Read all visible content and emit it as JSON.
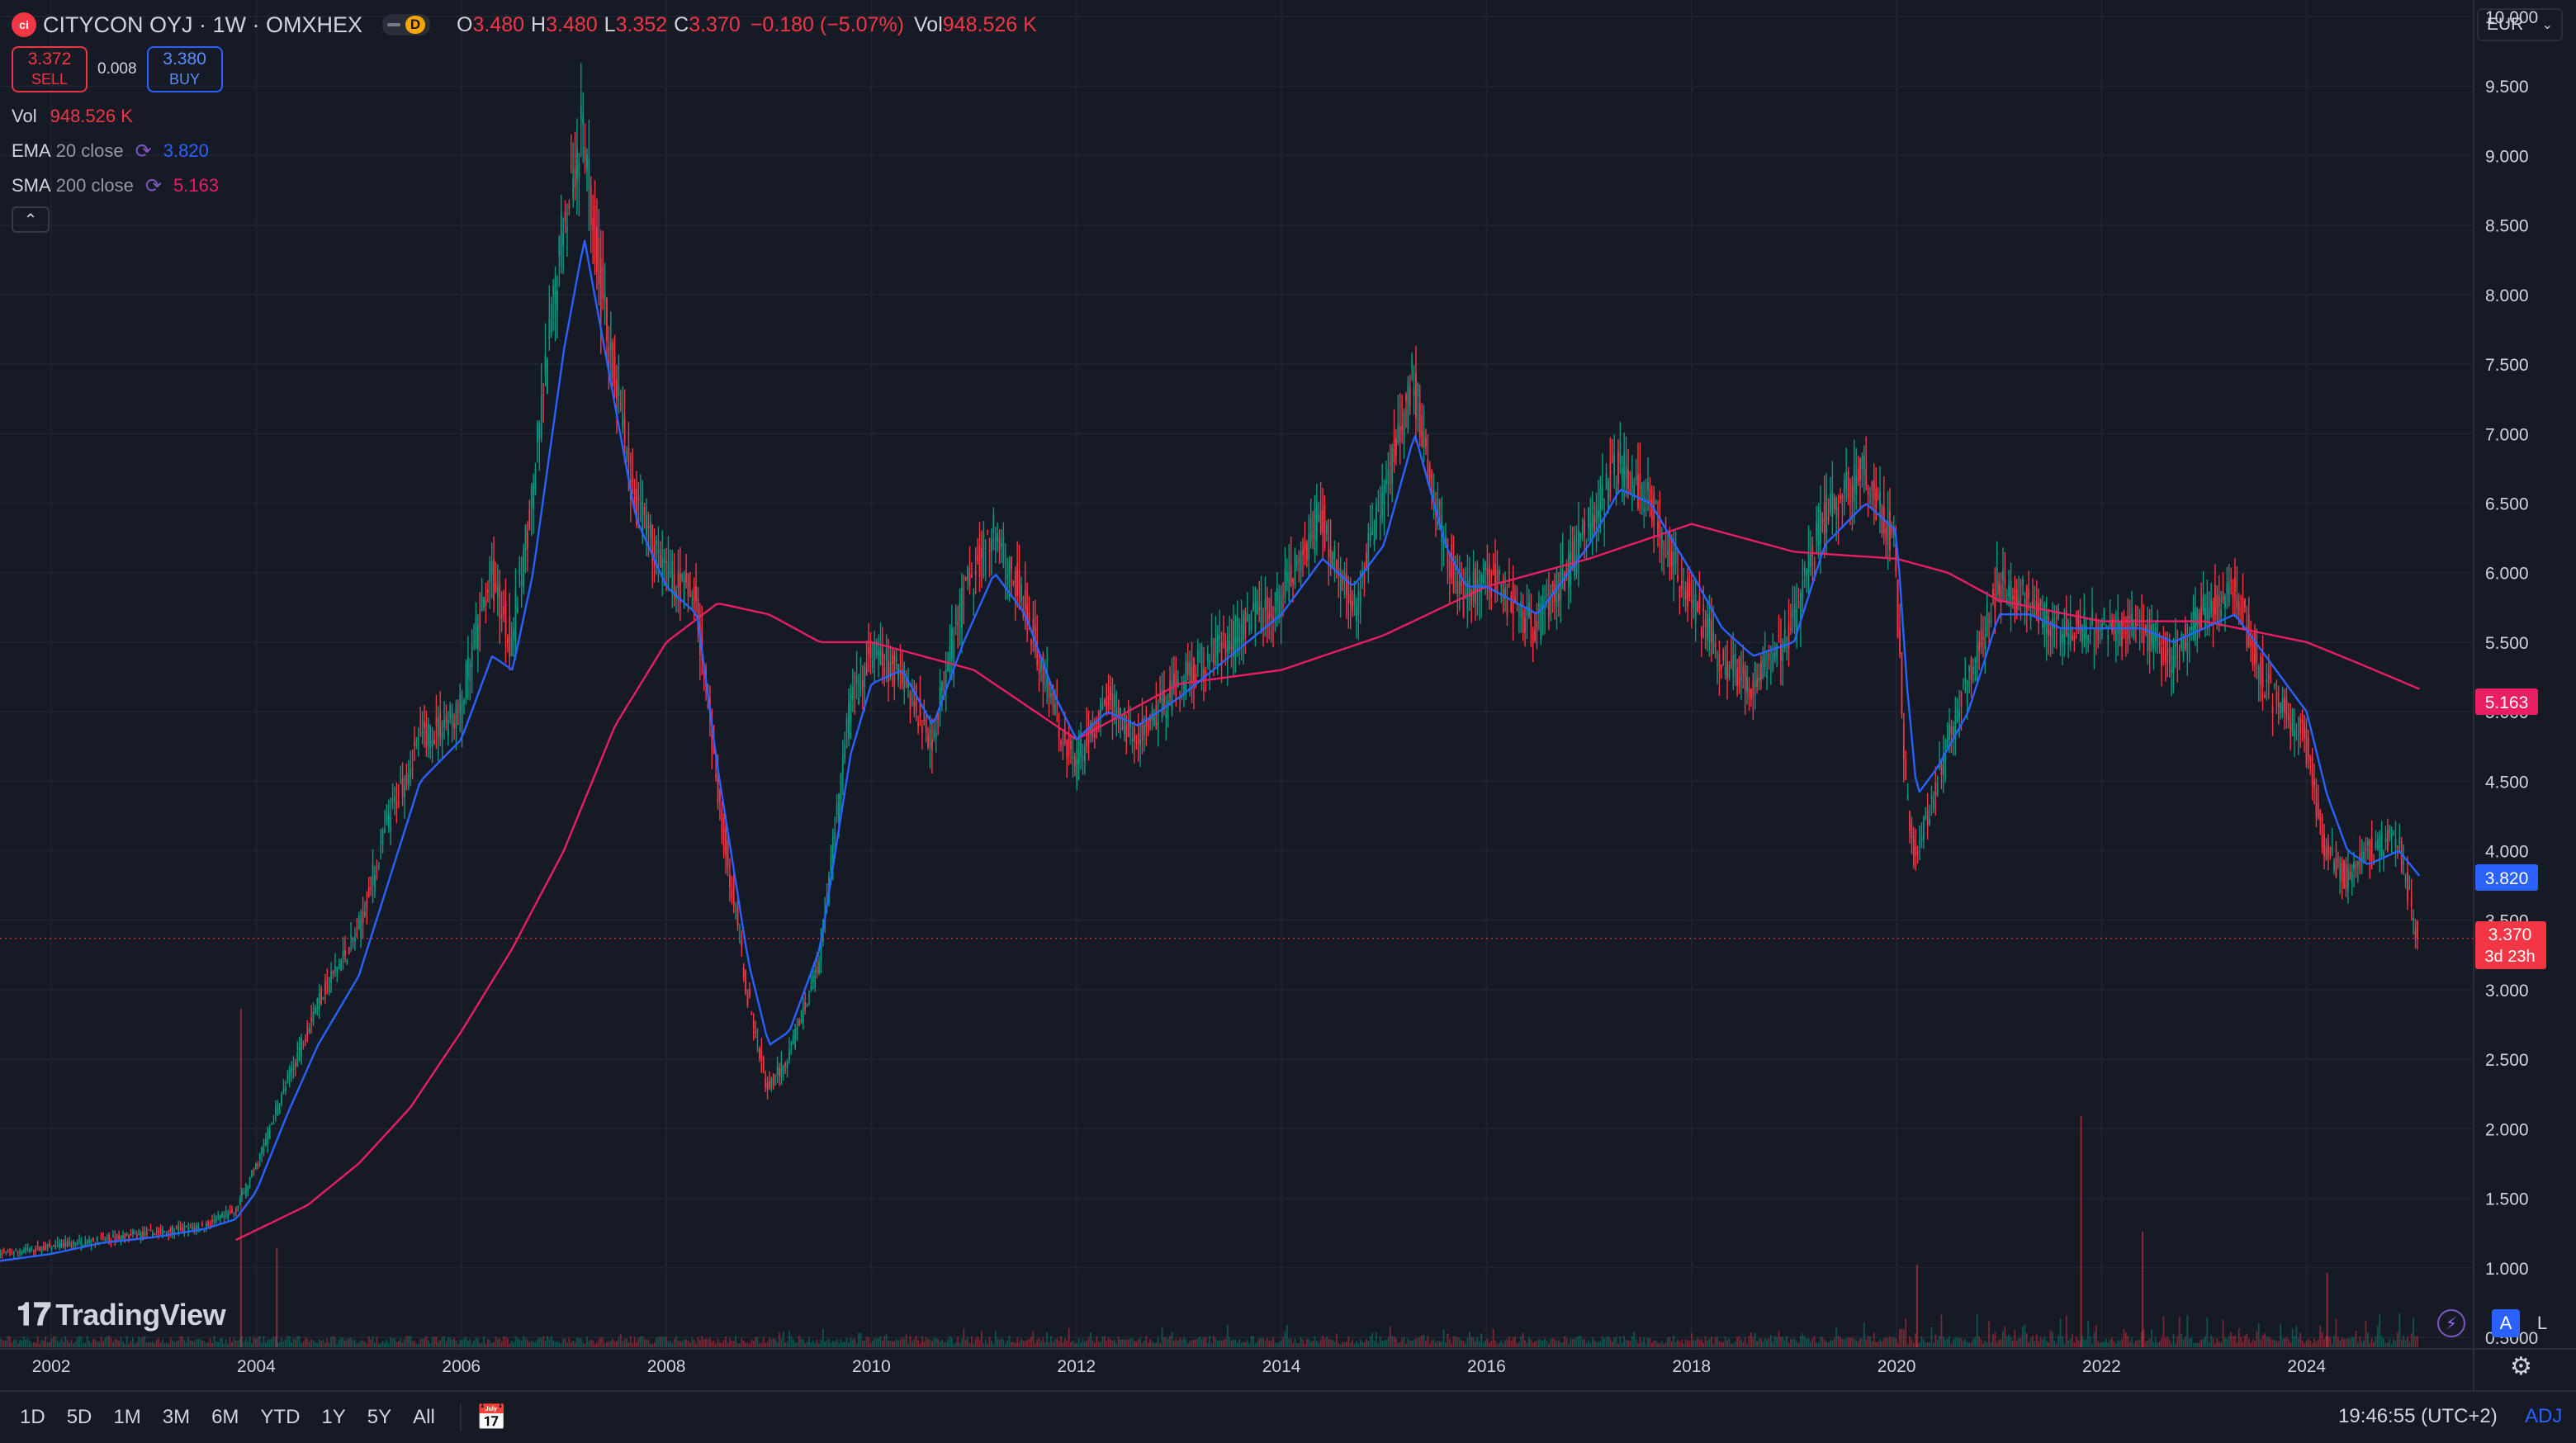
{
  "header": {
    "symbol_title": "CITYCON OYJ · 1W · OMXHEX",
    "logo_text": "ci",
    "delay_badge": "D",
    "ohlc": [
      {
        "k": "O",
        "v": "3.480"
      },
      {
        "k": "H",
        "v": "3.480"
      },
      {
        "k": "L",
        "v": "3.352"
      },
      {
        "k": "C",
        "v": "3.370"
      }
    ],
    "change": "−0.180 (−5.07%)",
    "vol_label": "Vol",
    "vol_value": "948.526 K"
  },
  "trade": {
    "sell_price": "3.372",
    "sell_label": "SELL",
    "spread": "0.008",
    "buy_price": "3.380",
    "buy_label": "BUY"
  },
  "indicators": {
    "vol": {
      "name": "Vol",
      "value": "948.526 K"
    },
    "ema": {
      "name": "EMA",
      "args": "20 close",
      "value": "3.820"
    },
    "sma": {
      "name": "SMA",
      "args": "200 close",
      "value": "5.163"
    }
  },
  "currency": "EUR",
  "brand": "TradingView",
  "bottom_bar": {
    "ranges": [
      "1D",
      "5D",
      "1M",
      "3M",
      "6M",
      "YTD",
      "1Y",
      "5Y",
      "All"
    ],
    "clock": "19:46:55 (UTC+2)",
    "adj": "ADJ"
  },
  "price_scale": {
    "mode_a": "A",
    "mode_l": "L",
    "current_price_label": "3.370",
    "countdown_label": "3d 23h",
    "ema_label": "3.820",
    "sma_label": "5.163"
  },
  "colors": {
    "background": "#161a25",
    "up": "#089981",
    "down": "#f23645",
    "ema": "#2962ff",
    "sma": "#e91e63",
    "text": "#d1d4dc"
  },
  "chart_data": {
    "type": "line",
    "title": "CITYCON OYJ · 1W · OMXHEX",
    "ylim": [
      0.5,
      10.0
    ],
    "xlim": [
      2001.5,
      2025.5
    ],
    "y_ticks": [
      "10.000",
      "9.500",
      "9.000",
      "8.500",
      "8.000",
      "7.500",
      "7.000",
      "6.500",
      "6.000",
      "5.500",
      "5.000",
      "4.500",
      "4.000",
      "3.500",
      "3.000",
      "2.500",
      "2.000",
      "1.500",
      "1.000",
      "0.5000"
    ],
    "x_ticks": [
      "2002",
      "2004",
      "2006",
      "2008",
      "2010",
      "2012",
      "2014",
      "2016",
      "2018",
      "2020",
      "2022",
      "2024"
    ],
    "series": [
      {
        "name": "Price",
        "x": [
          2001.5,
          2002.0,
          2002.5,
          2003.0,
          2003.5,
          2003.8,
          2004.0,
          2004.3,
          2004.6,
          2005.0,
          2005.3,
          2005.6,
          2006.0,
          2006.3,
          2006.5,
          2006.7,
          2007.0,
          2007.2,
          2007.4,
          2007.7,
          2008.0,
          2008.3,
          2008.5,
          2008.8,
          2009.0,
          2009.2,
          2009.5,
          2009.8,
          2010.0,
          2010.3,
          2010.6,
          2010.9,
          2011.2,
          2011.5,
          2011.8,
          2012.0,
          2012.3,
          2012.6,
          2013.0,
          2013.5,
          2014.0,
          2014.4,
          2014.7,
          2015.0,
          2015.3,
          2015.6,
          2015.8,
          2016.0,
          2016.5,
          2017.0,
          2017.3,
          2017.6,
          2018.0,
          2018.3,
          2018.6,
          2019.0,
          2019.3,
          2019.7,
          2020.0,
          2020.1,
          2020.2,
          2020.4,
          2020.7,
          2021.0,
          2021.3,
          2021.6,
          2022.0,
          2022.4,
          2022.7,
          2023.0,
          2023.3,
          2023.6,
          2024.0,
          2024.2,
          2024.4,
          2024.6,
          2024.9,
          2025.1
        ],
        "values": [
          1.1,
          1.15,
          1.2,
          1.25,
          1.3,
          1.4,
          1.7,
          2.3,
          2.9,
          3.4,
          4.2,
          4.8,
          5.0,
          6.0,
          5.5,
          6.5,
          8.5,
          9.2,
          7.9,
          6.5,
          6.0,
          5.8,
          4.5,
          3.0,
          2.3,
          2.5,
          3.2,
          5.0,
          5.4,
          5.3,
          4.8,
          5.8,
          6.3,
          5.8,
          5.0,
          4.6,
          5.1,
          4.8,
          5.2,
          5.5,
          5.8,
          6.4,
          5.7,
          6.5,
          7.4,
          6.2,
          5.8,
          6.0,
          5.6,
          6.3,
          6.8,
          6.5,
          5.8,
          5.4,
          5.2,
          5.6,
          6.4,
          6.7,
          6.2,
          4.5,
          3.9,
          4.5,
          5.2,
          5.9,
          5.8,
          5.6,
          5.6,
          5.6,
          5.4,
          5.7,
          5.9,
          5.2,
          4.8,
          4.0,
          3.8,
          4.0,
          4.1,
          3.37
        ]
      },
      {
        "name": "EMA 20 close",
        "x": [
          2001.5,
          2002.0,
          2002.5,
          2003.0,
          2003.5,
          2003.8,
          2004.0,
          2004.3,
          2004.6,
          2005.0,
          2005.3,
          2005.6,
          2006.0,
          2006.3,
          2006.5,
          2006.7,
          2007.0,
          2007.2,
          2007.4,
          2007.7,
          2008.0,
          2008.3,
          2008.5,
          2008.8,
          2009.0,
          2009.2,
          2009.5,
          2009.8,
          2010.0,
          2010.3,
          2010.6,
          2010.9,
          2011.2,
          2011.5,
          2011.8,
          2012.0,
          2012.3,
          2012.6,
          2013.0,
          2013.5,
          2014.0,
          2014.4,
          2014.7,
          2015.0,
          2015.3,
          2015.6,
          2015.8,
          2016.0,
          2016.5,
          2017.0,
          2017.3,
          2017.6,
          2018.0,
          2018.3,
          2018.6,
          2019.0,
          2019.3,
          2019.7,
          2020.0,
          2020.1,
          2020.2,
          2020.4,
          2020.7,
          2021.0,
          2021.3,
          2021.6,
          2022.0,
          2022.4,
          2022.7,
          2023.0,
          2023.3,
          2023.6,
          2024.0,
          2024.2,
          2024.4,
          2024.6,
          2024.9,
          2025.1
        ],
        "values": [
          1.05,
          1.1,
          1.18,
          1.22,
          1.28,
          1.35,
          1.55,
          2.1,
          2.6,
          3.1,
          3.8,
          4.5,
          4.8,
          5.4,
          5.3,
          6.0,
          7.6,
          8.4,
          7.6,
          6.4,
          5.9,
          5.7,
          4.6,
          3.2,
          2.6,
          2.7,
          3.3,
          4.7,
          5.2,
          5.3,
          4.9,
          5.5,
          6.0,
          5.7,
          5.1,
          4.8,
          5.0,
          4.9,
          5.1,
          5.4,
          5.7,
          6.1,
          5.9,
          6.2,
          7.0,
          6.2,
          5.9,
          5.9,
          5.7,
          6.2,
          6.6,
          6.5,
          6.0,
          5.6,
          5.4,
          5.5,
          6.2,
          6.5,
          6.3,
          5.2,
          4.4,
          4.6,
          5.0,
          5.7,
          5.7,
          5.6,
          5.6,
          5.6,
          5.5,
          5.6,
          5.7,
          5.4,
          5.0,
          4.4,
          4.0,
          3.9,
          4.0,
          3.82
        ]
      },
      {
        "name": "SMA 200 close",
        "x": [
          2003.8,
          2004.5,
          2005.0,
          2005.5,
          2006.0,
          2006.5,
          2007.0,
          2007.5,
          2008.0,
          2008.5,
          2009.0,
          2009.5,
          2010.0,
          2011.0,
          2012.0,
          2013.0,
          2014.0,
          2015.0,
          2016.0,
          2017.0,
          2018.0,
          2019.0,
          2020.0,
          2020.5,
          2021.0,
          2022.0,
          2023.0,
          2024.0,
          2024.5,
          2025.1
        ],
        "values": [
          1.2,
          1.45,
          1.75,
          2.15,
          2.7,
          3.3,
          4.0,
          4.9,
          5.5,
          5.78,
          5.7,
          5.5,
          5.5,
          5.3,
          4.8,
          5.2,
          5.3,
          5.55,
          5.9,
          6.1,
          6.35,
          6.15,
          6.1,
          6.0,
          5.8,
          5.65,
          5.65,
          5.5,
          5.35,
          5.163
        ]
      }
    ]
  }
}
